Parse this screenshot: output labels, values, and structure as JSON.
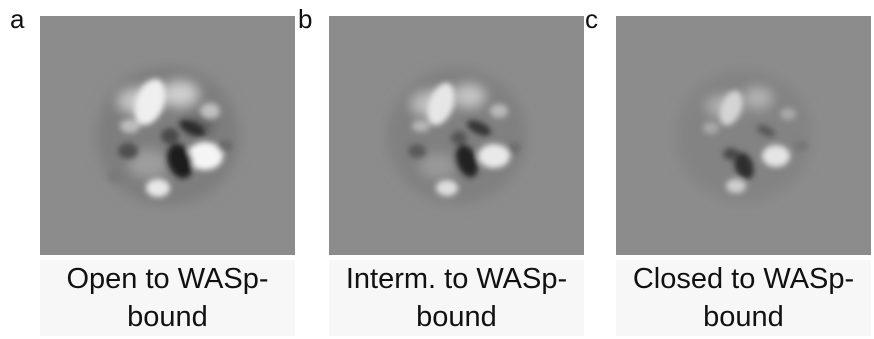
{
  "figure": {
    "panels": [
      {
        "letter": "a",
        "caption_line1": "Open to WASp-",
        "caption_line2": "bound"
      },
      {
        "letter": "b",
        "caption_line1": "Interm. to WASp-",
        "caption_line2": "bound"
      },
      {
        "letter": "c",
        "caption_line1": "Closed to WASp-",
        "caption_line2": "bound"
      }
    ],
    "colors": {
      "background_gray": "#8c8c8c",
      "highlight": "#f2f2f2",
      "shadow": "#141414"
    }
  }
}
